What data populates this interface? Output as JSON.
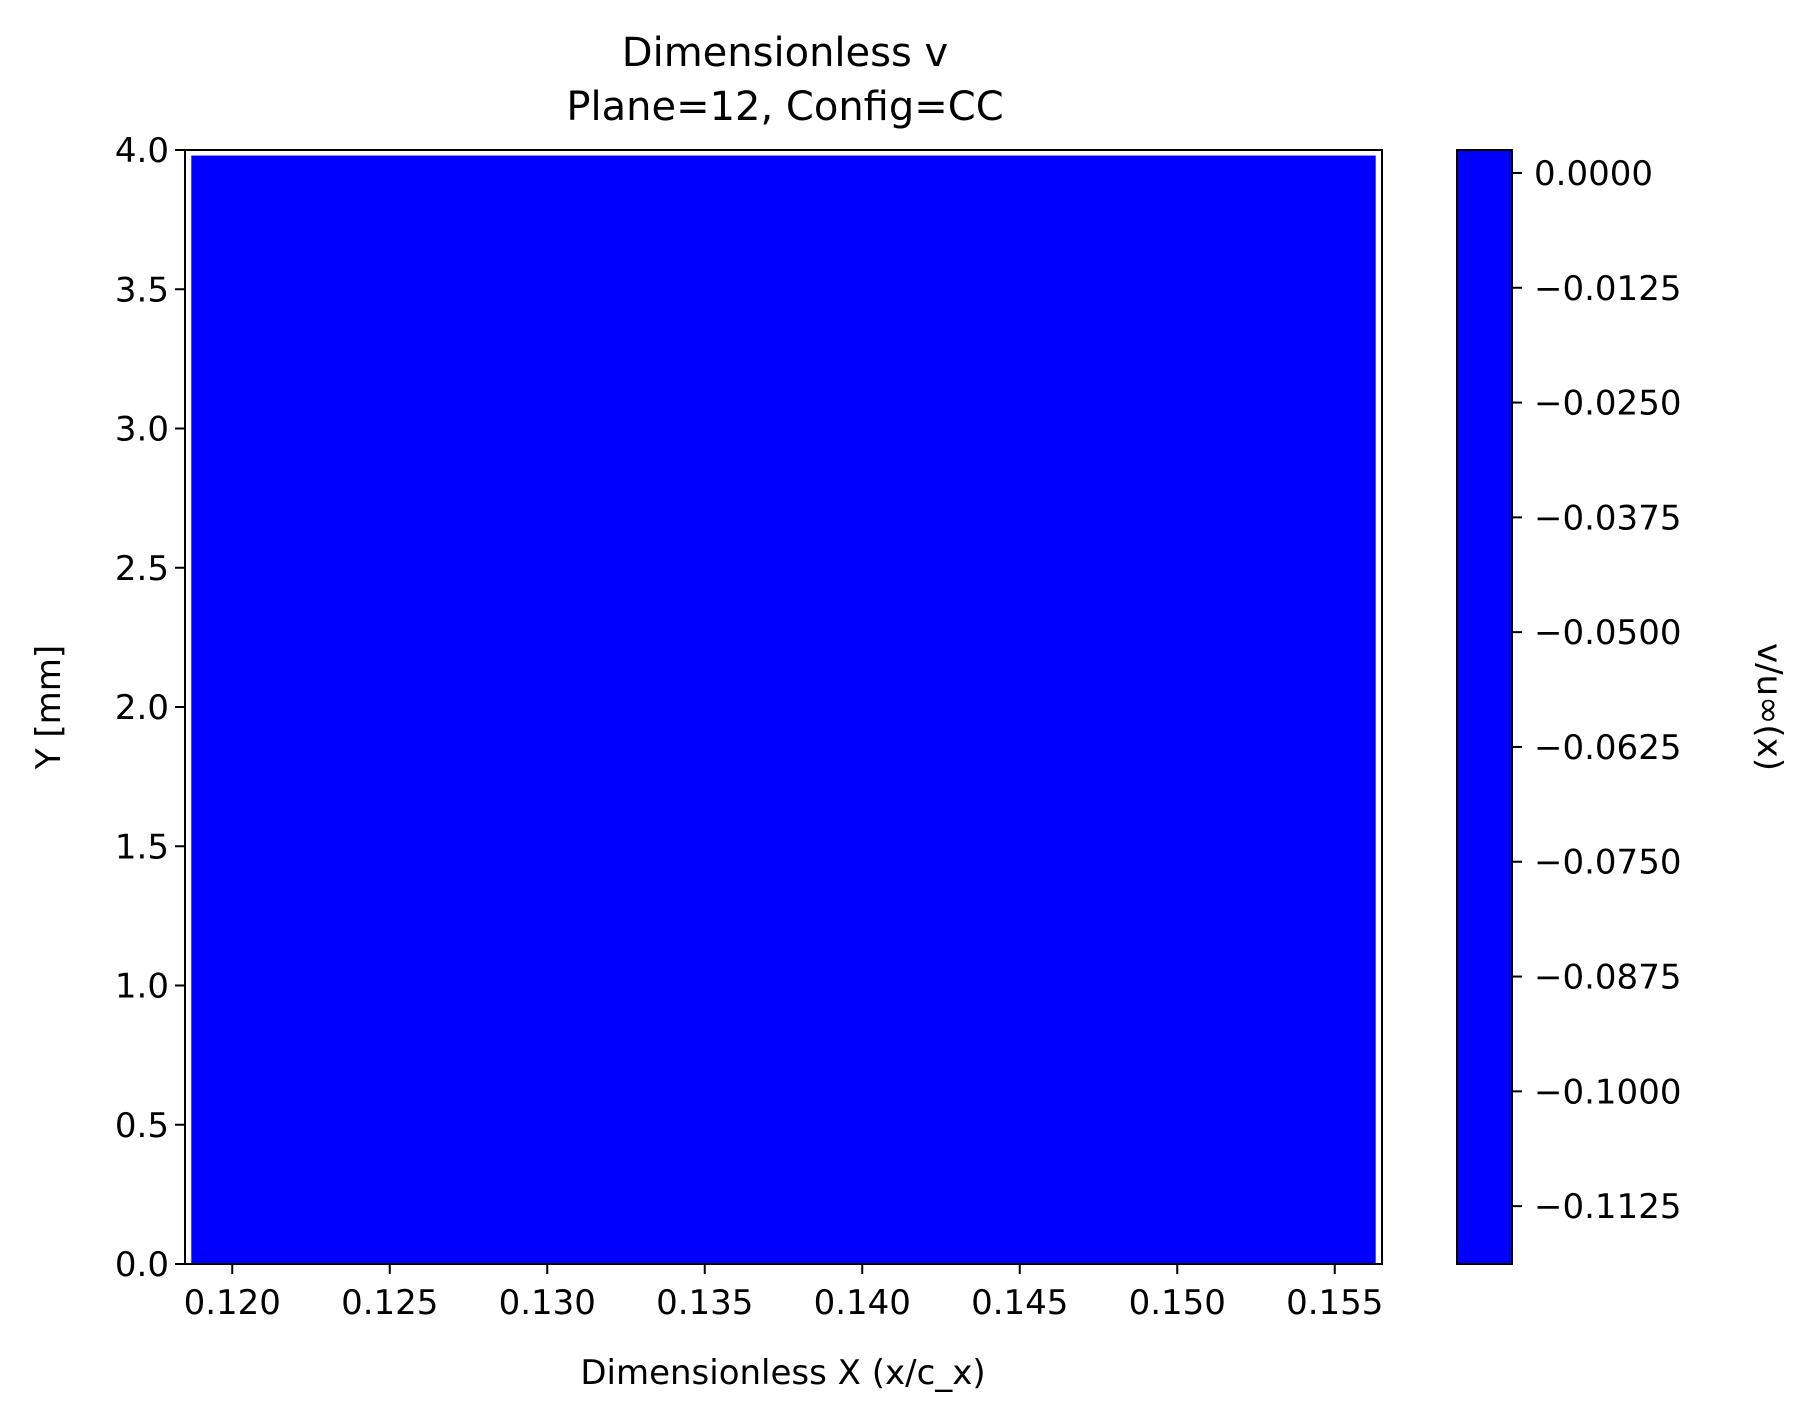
{
  "chart_data": {
    "type": "heatmap",
    "title": "Dimensionless v",
    "subtitle": "Plane=12, Config=CC",
    "xlabel": "Dimensionless X (x/c_x)",
    "ylabel": "Y [mm]",
    "xlim": [
      0.1185,
      0.1565
    ],
    "ylim": [
      0.0,
      4.0
    ],
    "data_extent": {
      "x": [
        0.1187,
        0.1563
      ],
      "y": [
        0.0,
        3.98
      ]
    },
    "xticks": [
      0.12,
      0.125,
      0.13,
      0.135,
      0.14,
      0.145,
      0.15,
      0.155
    ],
    "xtick_labels": [
      "0.120",
      "0.125",
      "0.130",
      "0.135",
      "0.140",
      "0.145",
      "0.150",
      "0.155"
    ],
    "yticks": [
      0.0,
      0.5,
      1.0,
      1.5,
      2.0,
      2.5,
      3.0,
      3.5,
      4.0
    ],
    "ytick_labels": [
      "0.0",
      "0.5",
      "1.0",
      "1.5",
      "2.0",
      "2.5",
      "3.0",
      "3.5",
      "4.0"
    ],
    "field_value_color": "#0000ff",
    "grid": false,
    "colorbar": {
      "label": "v/u∞(x)",
      "range": [
        -0.1188,
        0.0025
      ],
      "ticks": [
        0.0,
        -0.0125,
        -0.025,
        -0.0375,
        -0.05,
        -0.0625,
        -0.075,
        -0.0875,
        -0.1,
        -0.1125
      ],
      "tick_labels": [
        "0.0000",
        "−0.0125",
        "−0.0250",
        "−0.0375",
        "−0.0500",
        "−0.0625",
        "−0.0750",
        "−0.0875",
        "−0.1000",
        "−0.1125"
      ],
      "color": "#0000ff"
    }
  }
}
